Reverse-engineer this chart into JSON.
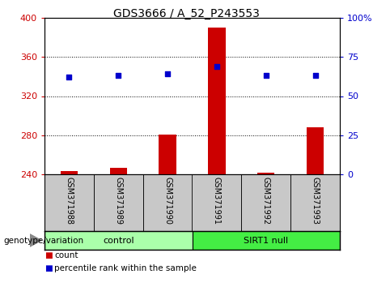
{
  "title": "GDS3666 / A_52_P243553",
  "samples": [
    "GSM371988",
    "GSM371989",
    "GSM371990",
    "GSM371991",
    "GSM371992",
    "GSM371993"
  ],
  "counts": [
    243,
    247,
    281,
    390,
    242,
    288
  ],
  "percentiles": [
    62,
    63,
    64,
    69,
    63,
    63
  ],
  "baseline": 240,
  "ylim_left": [
    240,
    400
  ],
  "ylim_right": [
    0,
    100
  ],
  "yticks_left": [
    240,
    280,
    320,
    360,
    400
  ],
  "yticks_right": [
    0,
    25,
    50,
    75,
    100
  ],
  "groups": [
    {
      "label": "control",
      "indices": [
        0,
        1,
        2
      ],
      "color": "#aaffaa"
    },
    {
      "label": "SIRT1 null",
      "indices": [
        3,
        4,
        5
      ],
      "color": "#44ee44"
    }
  ],
  "bar_color": "#cc0000",
  "dot_color": "#0000cc",
  "bar_width": 0.35,
  "axis_label_color_left": "#cc0000",
  "axis_label_color_right": "#0000cc",
  "xlabel_area_color": "#c8c8c8",
  "genotype_label": "genotype/variation",
  "legend_items": [
    {
      "color": "#cc0000",
      "label": "count"
    },
    {
      "color": "#0000cc",
      "label": "percentile rank within the sample"
    }
  ],
  "figsize": [
    4.61,
    3.54
  ],
  "dpi": 100
}
